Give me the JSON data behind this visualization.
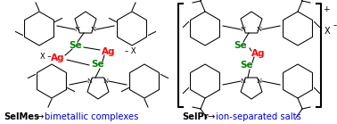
{
  "background_color": "#ffffff",
  "text_color_black": "#000000",
  "text_color_blue": "#0000cd",
  "text_color_green": "#008000",
  "text_color_red": "#ff0000",
  "fig_width": 3.78,
  "fig_height": 1.39,
  "dpi": 100,
  "label_fontsize": 7.2,
  "lw": 0.75,
  "hex_r": 0.038,
  "left_label_bold": "SelMes",
  "left_arrow": "→",
  "left_label_blue": "bimetallic complexes",
  "right_label_bold": "SelPr",
  "right_arrow": "→",
  "right_label_blue": "ion-separated salts"
}
